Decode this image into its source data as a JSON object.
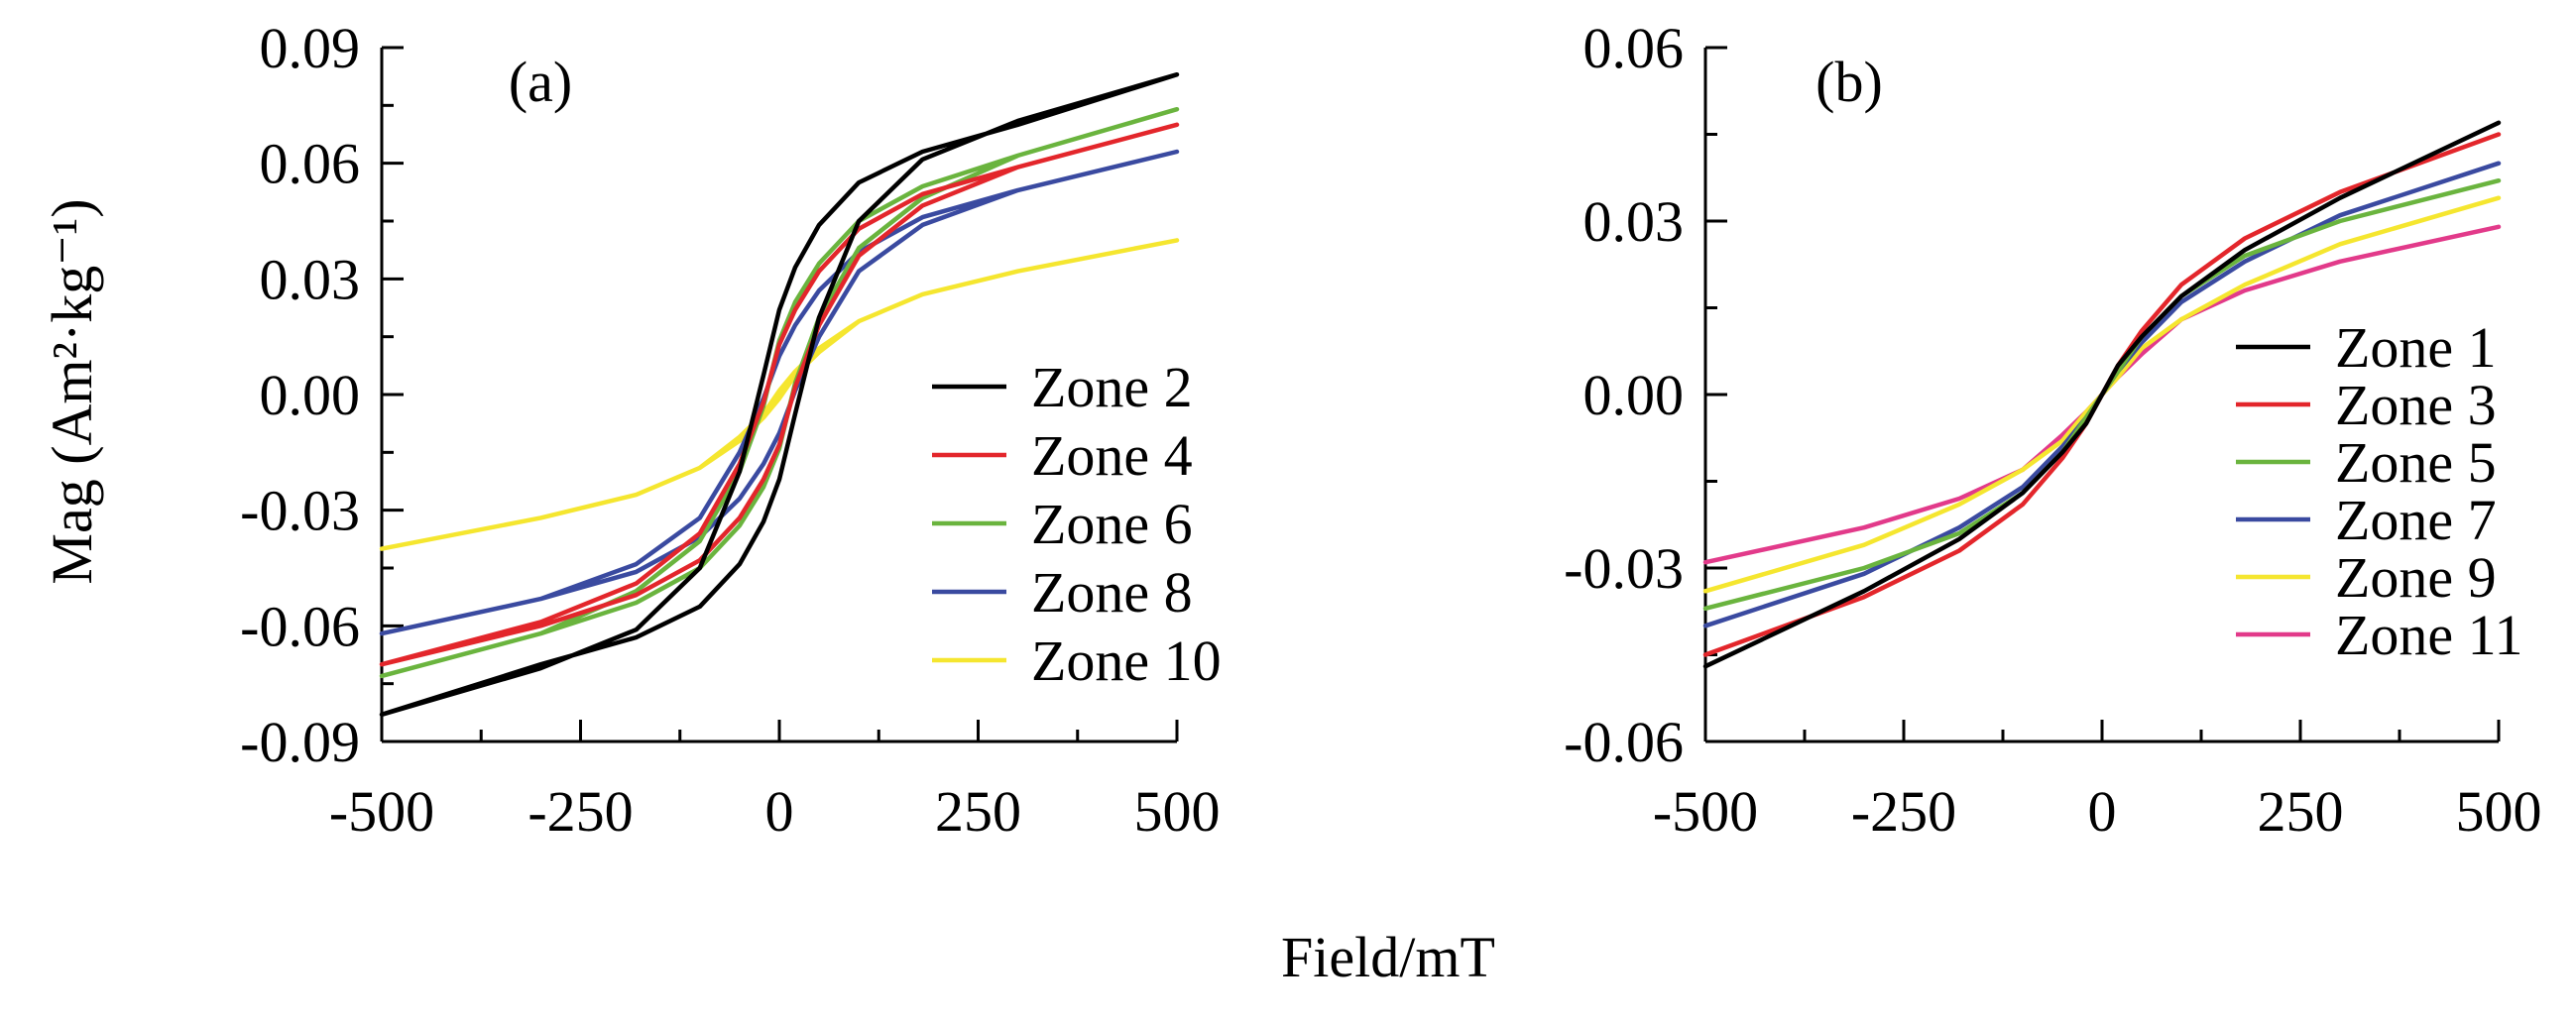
{
  "figure": {
    "xlabel": "Field/mT",
    "ylabel": "Mag (Am²·kg⁻¹)"
  },
  "chart_data": [
    {
      "type": "line",
      "panel": "(a)",
      "xlim": [
        -500,
        500
      ],
      "ylim": [
        -0.09,
        0.09
      ],
      "x_ticks": [
        -500,
        -250,
        0,
        250,
        500
      ],
      "x_tick_labels": [
        "-500",
        "-250",
        "0",
        "250",
        "500"
      ],
      "y_ticks": [
        -0.09,
        -0.06,
        -0.03,
        0,
        0.03,
        0.06,
        0.09
      ],
      "y_tick_labels": [
        "-0.09",
        "-0.06",
        "-0.03",
        "0.00",
        "0.03",
        "0.06",
        "0.09"
      ],
      "legend_position": "center-right",
      "series": [
        {
          "name": "Zone 2",
          "color": "#000000",
          "x": [
            -500,
            -300,
            -180,
            -100,
            -50,
            -20,
            0,
            20,
            50,
            100,
            180,
            300,
            500,
            300,
            180,
            100,
            50,
            20,
            0,
            -20,
            -50,
            -100,
            -180,
            -300,
            -500
          ],
          "y": [
            -0.083,
            -0.07,
            -0.063,
            -0.055,
            -0.044,
            -0.033,
            -0.022,
            -0.005,
            0.02,
            0.045,
            0.061,
            0.071,
            0.083,
            0.07,
            0.063,
            0.055,
            0.044,
            0.033,
            0.022,
            0.005,
            -0.02,
            -0.045,
            -0.061,
            -0.071,
            -0.083
          ]
        },
        {
          "name": "Zone 4",
          "color": "#e3262b",
          "x": [
            -500,
            -300,
            -180,
            -100,
            -50,
            -20,
            0,
            20,
            50,
            100,
            180,
            300,
            500,
            300,
            180,
            100,
            50,
            20,
            0,
            -20,
            -50,
            -100,
            -180,
            -300,
            -500
          ],
          "y": [
            -0.07,
            -0.06,
            -0.052,
            -0.043,
            -0.032,
            -0.022,
            -0.013,
            0.002,
            0.018,
            0.036,
            0.049,
            0.059,
            0.07,
            0.059,
            0.052,
            0.043,
            0.032,
            0.022,
            0.013,
            -0.002,
            -0.018,
            -0.036,
            -0.049,
            -0.059,
            -0.07
          ]
        },
        {
          "name": "Zone 6",
          "color": "#6ab43e",
          "x": [
            -500,
            -300,
            -180,
            -100,
            -50,
            -20,
            0,
            20,
            50,
            100,
            180,
            300,
            500,
            300,
            180,
            100,
            50,
            20,
            0,
            -20,
            -50,
            -100,
            -180,
            -300,
            -500
          ],
          "y": [
            -0.073,
            -0.062,
            -0.054,
            -0.045,
            -0.034,
            -0.024,
            -0.014,
            0.003,
            0.02,
            0.038,
            0.051,
            0.062,
            0.074,
            0.062,
            0.054,
            0.045,
            0.034,
            0.024,
            0.014,
            -0.003,
            -0.02,
            -0.038,
            -0.051,
            -0.062,
            -0.073
          ]
        },
        {
          "name": "Zone 8",
          "color": "#3a4aa0",
          "x": [
            -500,
            -300,
            -180,
            -100,
            -50,
            -20,
            0,
            20,
            50,
            100,
            180,
            300,
            500,
            300,
            180,
            100,
            50,
            20,
            0,
            -20,
            -50,
            -100,
            -180,
            -300,
            -500
          ],
          "y": [
            -0.062,
            -0.053,
            -0.046,
            -0.037,
            -0.027,
            -0.018,
            -0.01,
            0.001,
            0.015,
            0.032,
            0.044,
            0.053,
            0.063,
            0.053,
            0.046,
            0.037,
            0.027,
            0.018,
            0.01,
            -0.001,
            -0.015,
            -0.032,
            -0.044,
            -0.053,
            -0.062
          ]
        },
        {
          "name": "Zone 10",
          "color": "#f5e62f",
          "x": [
            -500,
            -300,
            -180,
            -100,
            -50,
            -20,
            0,
            20,
            50,
            100,
            180,
            300,
            500,
            300,
            180,
            100,
            50,
            20,
            0,
            -20,
            -50,
            -100,
            -180,
            -300,
            -500
          ],
          "y": [
            -0.04,
            -0.032,
            -0.026,
            -0.019,
            -0.012,
            -0.006,
            -0.001,
            0.005,
            0.011,
            0.019,
            0.026,
            0.032,
            0.04,
            0.032,
            0.026,
            0.019,
            0.012,
            0.006,
            0.001,
            -0.005,
            -0.011,
            -0.019,
            -0.026,
            -0.032,
            -0.04
          ]
        }
      ]
    },
    {
      "type": "line",
      "panel": "(b)",
      "xlim": [
        -500,
        500
      ],
      "ylim": [
        -0.06,
        0.06
      ],
      "x_ticks": [
        -500,
        -250,
        0,
        250,
        500
      ],
      "x_tick_labels": [
        "-500",
        "-250",
        "0",
        "250",
        "500"
      ],
      "y_ticks": [
        -0.06,
        -0.03,
        0,
        0.03,
        0.06
      ],
      "y_tick_labels": [
        "-0.06",
        "-0.03",
        "0.00",
        "0.03",
        "0.06"
      ],
      "legend_position": "center-right",
      "series": [
        {
          "name": "Zone 1",
          "color": "#000000",
          "x": [
            -500,
            -300,
            -180,
            -100,
            -50,
            -20,
            0,
            20,
            50,
            100,
            180,
            300,
            500
          ],
          "y": [
            -0.047,
            -0.034,
            -0.025,
            -0.017,
            -0.01,
            -0.005,
            0.0,
            0.005,
            0.01,
            0.017,
            0.025,
            0.034,
            0.047
          ]
        },
        {
          "name": "Zone 3",
          "color": "#e3262b",
          "x": [
            -500,
            -300,
            -180,
            -100,
            -50,
            -20,
            0,
            20,
            50,
            100,
            180,
            300,
            500
          ],
          "y": [
            -0.045,
            -0.035,
            -0.027,
            -0.019,
            -0.011,
            -0.005,
            0.0,
            0.005,
            0.011,
            0.019,
            0.027,
            0.035,
            0.045
          ]
        },
        {
          "name": "Zone 5",
          "color": "#6ab43e",
          "x": [
            -500,
            -300,
            -180,
            -100,
            -50,
            -20,
            0,
            20,
            50,
            100,
            180,
            300,
            500
          ],
          "y": [
            -0.037,
            -0.03,
            -0.024,
            -0.017,
            -0.01,
            -0.004,
            0.0,
            0.004,
            0.01,
            0.017,
            0.024,
            0.03,
            0.037
          ]
        },
        {
          "name": "Zone 7",
          "color": "#3a4aa0",
          "x": [
            -500,
            -300,
            -180,
            -100,
            -50,
            -20,
            0,
            20,
            50,
            100,
            180,
            300,
            500
          ],
          "y": [
            -0.04,
            -0.031,
            -0.023,
            -0.016,
            -0.009,
            -0.004,
            0.0,
            0.004,
            0.009,
            0.016,
            0.023,
            0.031,
            0.04
          ]
        },
        {
          "name": "Zone 9",
          "color": "#f5e62f",
          "x": [
            -500,
            -300,
            -180,
            -100,
            -50,
            -20,
            0,
            20,
            50,
            100,
            180,
            300,
            500
          ],
          "y": [
            -0.034,
            -0.026,
            -0.019,
            -0.013,
            -0.008,
            -0.003,
            0.0,
            0.003,
            0.008,
            0.013,
            0.019,
            0.026,
            0.034
          ]
        },
        {
          "name": "Zone 11",
          "color": "#e23a8a",
          "x": [
            -500,
            -300,
            -180,
            -100,
            -50,
            -20,
            0,
            20,
            50,
            100,
            180,
            300,
            500
          ],
          "y": [
            -0.029,
            -0.023,
            -0.018,
            -0.013,
            -0.007,
            -0.003,
            0.0,
            0.003,
            0.007,
            0.013,
            0.018,
            0.023,
            0.029
          ]
        }
      ]
    }
  ]
}
